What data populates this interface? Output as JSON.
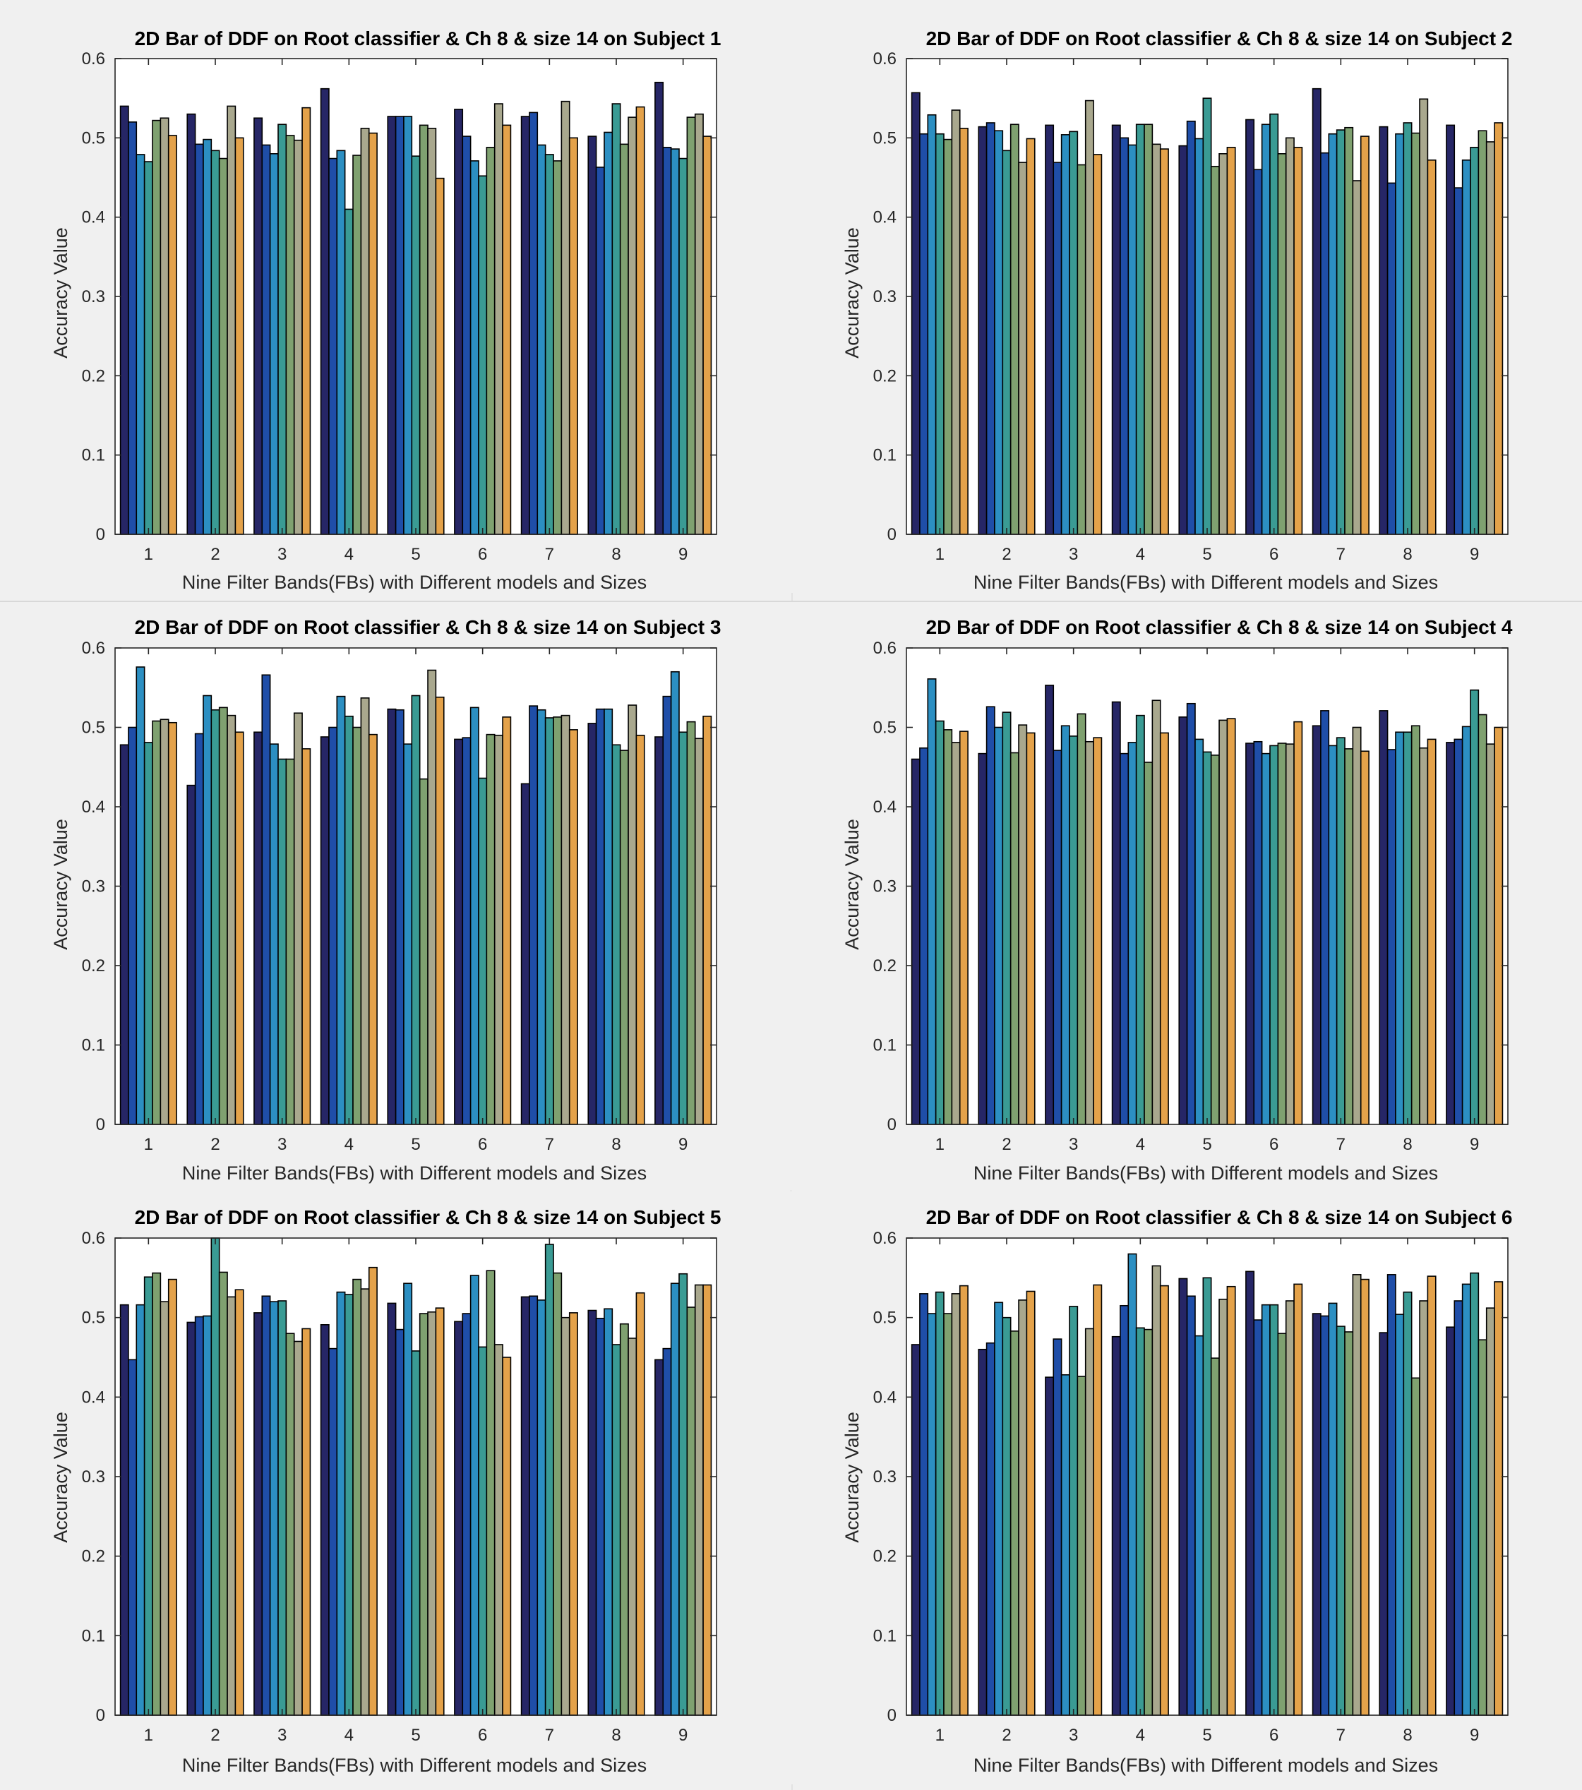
{
  "colors": {
    "series": [
      "#262666",
      "#1f4ea8",
      "#2c8fc2",
      "#3a9b94",
      "#7fa170",
      "#a9a88e",
      "#e4a24a",
      "#f0d040",
      "#f5f04a"
    ],
    "axes_bg": "#ffffff",
    "figure_bg": "#f0f0f0"
  },
  "chart_data": [
    {
      "type": "bar",
      "title": "2D Bar of DDF on Root classifier & Ch 8 & size 14 on Subject 1",
      "xlabel": "Nine Filter Bands(FBs) with Different models and Sizes",
      "ylabel": "Accuracy Value",
      "ylim": [
        0,
        0.6
      ],
      "yticks": [
        "0",
        "0.1",
        "0.2",
        "0.3",
        "0.4",
        "0.5",
        "0.6"
      ],
      "categories": [
        "1",
        "2",
        "3",
        "4",
        "5",
        "6",
        "7",
        "8",
        "9"
      ],
      "groups": [
        [
          0.54,
          0.52,
          0.479,
          0.47,
          0.522,
          0.525,
          0.503
        ],
        [
          0.53,
          0.492,
          0.498,
          0.484,
          0.474,
          0.54,
          0.5
        ],
        [
          0.525,
          0.491,
          0.48,
          0.517,
          0.503,
          0.497,
          0.538
        ],
        [
          0.562,
          0.474,
          0.484,
          0.41,
          0.478,
          0.512,
          0.506
        ],
        [
          0.527,
          0.527,
          0.527,
          0.477,
          0.516,
          0.512,
          0.449
        ],
        [
          0.536,
          0.502,
          0.471,
          0.452,
          0.488,
          0.543,
          0.516
        ],
        [
          0.527,
          0.532,
          0.491,
          0.479,
          0.471,
          0.546,
          0.5
        ],
        [
          0.502,
          0.463,
          0.507,
          0.543,
          0.492,
          0.526,
          0.539
        ],
        [
          0.57,
          0.488,
          0.486,
          0.474,
          0.526,
          0.53,
          0.502
        ]
      ]
    },
    {
      "type": "bar",
      "title": "2D Bar of DDF on Root classifier & Ch 8 & size 14 on Subject 2",
      "xlabel": "Nine Filter Bands(FBs) with Different models and Sizes",
      "ylabel": "Accuracy Value",
      "ylim": [
        0,
        0.6
      ],
      "yticks": [
        "0",
        "0.1",
        "0.2",
        "0.3",
        "0.4",
        "0.5",
        "0.6"
      ],
      "categories": [
        "1",
        "2",
        "3",
        "4",
        "5",
        "6",
        "7",
        "8",
        "9"
      ],
      "groups": [
        [
          0.557,
          0.505,
          0.529,
          0.505,
          0.498,
          0.535,
          0.512
        ],
        [
          0.514,
          0.519,
          0.509,
          0.484,
          0.517,
          0.469,
          0.499
        ],
        [
          0.516,
          0.469,
          0.504,
          0.508,
          0.466,
          0.547,
          0.479
        ],
        [
          0.516,
          0.5,
          0.491,
          0.517,
          0.517,
          0.492,
          0.486
        ],
        [
          0.49,
          0.521,
          0.499,
          0.55,
          0.464,
          0.48,
          0.488
        ],
        [
          0.523,
          0.46,
          0.517,
          0.53,
          0.48,
          0.5,
          0.488
        ],
        [
          0.562,
          0.481,
          0.505,
          0.51,
          0.513,
          0.446,
          0.502
        ],
        [
          0.514,
          0.443,
          0.505,
          0.519,
          0.506,
          0.549,
          0.472
        ],
        [
          0.516,
          0.437,
          0.472,
          0.488,
          0.509,
          0.495,
          0.519
        ]
      ]
    },
    {
      "type": "bar",
      "title": "2D Bar of DDF on Root classifier & Ch 8 & size 14 on Subject 3",
      "xlabel": "Nine Filter Bands(FBs) with Different models and Sizes",
      "ylabel": "Accuracy Value",
      "ylim": [
        0,
        0.6
      ],
      "yticks": [
        "0",
        "0.1",
        "0.2",
        "0.3",
        "0.4",
        "0.5",
        "0.6"
      ],
      "categories": [
        "1",
        "2",
        "3",
        "4",
        "5",
        "6",
        "7",
        "8",
        "9"
      ],
      "groups": [
        [
          0.478,
          0.5,
          0.576,
          0.481,
          0.508,
          0.51,
          0.506
        ],
        [
          0.427,
          0.492,
          0.54,
          0.522,
          0.525,
          0.515,
          0.494
        ],
        [
          0.494,
          0.566,
          0.479,
          0.46,
          0.46,
          0.518,
          0.473
        ],
        [
          0.488,
          0.5,
          0.539,
          0.514,
          0.5,
          0.537,
          0.491
        ],
        [
          0.523,
          0.522,
          0.479,
          0.54,
          0.435,
          0.572,
          0.538
        ],
        [
          0.485,
          0.487,
          0.525,
          0.436,
          0.491,
          0.49,
          0.513
        ],
        [
          0.429,
          0.527,
          0.522,
          0.512,
          0.513,
          0.515,
          0.497
        ],
        [
          0.505,
          0.523,
          0.523,
          0.478,
          0.471,
          0.528,
          0.49
        ],
        [
          0.488,
          0.539,
          0.57,
          0.494,
          0.507,
          0.486,
          0.514
        ]
      ]
    },
    {
      "type": "bar",
      "title": "2D Bar of DDF on Root classifier & Ch 8 & size 14 on Subject 4",
      "xlabel": "Nine Filter Bands(FBs) with Different models and Sizes",
      "ylabel": "Accuracy Value",
      "ylim": [
        0,
        0.6
      ],
      "yticks": [
        "0",
        "0.1",
        "0.2",
        "0.3",
        "0.4",
        "0.5",
        "0.6"
      ],
      "categories": [
        "1",
        "2",
        "3",
        "4",
        "5",
        "6",
        "7",
        "8",
        "9"
      ],
      "groups": [
        [
          0.46,
          0.474,
          0.561,
          0.508,
          0.497,
          0.481,
          0.495
        ],
        [
          0.467,
          0.526,
          0.5,
          0.519,
          0.468,
          0.503,
          0.493
        ],
        [
          0.553,
          0.471,
          0.502,
          0.489,
          0.517,
          0.482,
          0.487
        ],
        [
          0.532,
          0.467,
          0.481,
          0.515,
          0.456,
          0.534,
          0.493
        ],
        [
          0.513,
          0.53,
          0.485,
          0.469,
          0.465,
          0.509,
          0.511
        ],
        [
          0.48,
          0.482,
          0.467,
          0.477,
          0.48,
          0.479,
          0.507
        ],
        [
          0.502,
          0.521,
          0.477,
          0.487,
          0.473,
          0.5,
          0.47
        ],
        [
          0.521,
          0.472,
          0.494,
          0.494,
          0.502,
          0.474,
          0.485
        ],
        [
          0.481,
          0.485,
          0.501,
          0.547,
          0.516,
          0.479,
          0.5
        ]
      ]
    },
    {
      "type": "bar",
      "title": "2D Bar of DDF on Root classifier & Ch 8 & size 14 on Subject 5",
      "xlabel": "Nine Filter Bands(FBs) with Different models and Sizes",
      "ylabel": "Accuracy Value",
      "ylim": [
        0,
        0.6
      ],
      "yticks": [
        "0",
        "0.1",
        "0.2",
        "0.3",
        "0.4",
        "0.5",
        "0.6"
      ],
      "categories": [
        "1",
        "2",
        "3",
        "4",
        "5",
        "6",
        "7",
        "8",
        "9"
      ],
      "groups": [
        [
          0.516,
          0.447,
          0.516,
          0.551,
          0.556,
          0.52,
          0.548
        ],
        [
          0.494,
          0.501,
          0.502,
          0.6,
          0.557,
          0.526,
          0.535
        ],
        [
          0.506,
          0.527,
          0.52,
          0.521,
          0.48,
          0.47,
          0.486
        ],
        [
          0.491,
          0.461,
          0.532,
          0.529,
          0.548,
          0.536,
          0.563
        ],
        [
          0.518,
          0.485,
          0.543,
          0.458,
          0.505,
          0.507,
          0.512
        ],
        [
          0.495,
          0.505,
          0.553,
          0.463,
          0.559,
          0.466,
          0.45
        ],
        [
          0.526,
          0.527,
          0.522,
          0.592,
          0.556,
          0.5,
          0.506
        ],
        [
          0.509,
          0.499,
          0.511,
          0.466,
          0.492,
          0.474,
          0.531
        ],
        [
          0.447,
          0.461,
          0.543,
          0.555,
          0.513,
          0.541,
          0.541
        ]
      ]
    },
    {
      "type": "bar",
      "title": "2D Bar of DDF on Root classifier & Ch 8 & size 14 on Subject 6",
      "xlabel": "Nine Filter Bands(FBs) with Different models and Sizes",
      "ylabel": "Accuracy Value",
      "ylim": [
        0,
        0.6
      ],
      "yticks": [
        "0",
        "0.1",
        "0.2",
        "0.3",
        "0.4",
        "0.5",
        "0.6"
      ],
      "categories": [
        "1",
        "2",
        "3",
        "4",
        "5",
        "6",
        "7",
        "8",
        "9"
      ],
      "groups": [
        [
          0.466,
          0.53,
          0.505,
          0.532,
          0.505,
          0.53,
          0.54
        ],
        [
          0.46,
          0.468,
          0.519,
          0.5,
          0.483,
          0.522,
          0.533
        ],
        [
          0.425,
          0.473,
          0.428,
          0.514,
          0.426,
          0.486,
          0.541
        ],
        [
          0.476,
          0.515,
          0.58,
          0.487,
          0.485,
          0.565,
          0.54
        ],
        [
          0.549,
          0.527,
          0.477,
          0.55,
          0.449,
          0.523,
          0.539
        ],
        [
          0.558,
          0.497,
          0.516,
          0.516,
          0.48,
          0.521,
          0.542
        ],
        [
          0.505,
          0.502,
          0.518,
          0.489,
          0.482,
          0.554,
          0.548
        ],
        [
          0.481,
          0.554,
          0.504,
          0.532,
          0.424,
          0.521,
          0.552
        ],
        [
          0.488,
          0.521,
          0.542,
          0.556,
          0.472,
          0.512,
          0.545
        ]
      ]
    }
  ]
}
